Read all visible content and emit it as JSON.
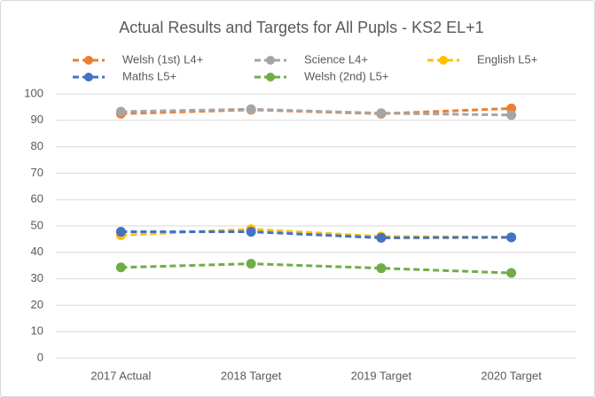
{
  "chart_data": {
    "type": "line",
    "title": "Actual Results and Targets for All Pupls - KS2 EL+1",
    "categories": [
      "2017 Actual",
      "2018 Target",
      "2019 Target",
      "2020 Target"
    ],
    "series": [
      {
        "name": "Welsh (1st) L4+",
        "color": "#ED7D31",
        "values": [
          92.5,
          94,
          92.5,
          94.5
        ]
      },
      {
        "name": "Science L4+",
        "color": "#A5A5A5",
        "values": [
          93.3,
          94.2,
          92.7,
          92
        ]
      },
      {
        "name": "English L5+",
        "color": "#FFC000",
        "values": [
          46.5,
          48.8,
          46,
          45.7
        ]
      },
      {
        "name": "Maths L5+",
        "color": "#4472C4",
        "values": [
          47.8,
          47.8,
          45.5,
          45.7
        ]
      },
      {
        "name": "Welsh (2nd) L5+",
        "color": "#70AD47",
        "values": [
          34.3,
          35.7,
          34,
          32.2
        ]
      }
    ],
    "ylim": [
      0,
      100
    ],
    "yticks": [
      0,
      10,
      20,
      30,
      40,
      50,
      60,
      70,
      80,
      90,
      100
    ],
    "grid": true,
    "legend": "top"
  }
}
